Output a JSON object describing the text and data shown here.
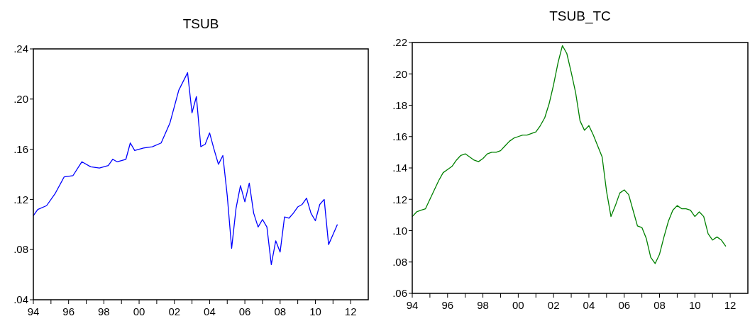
{
  "chart_data": [
    {
      "type": "line",
      "title": "TSUB",
      "x": [
        1994,
        1994.25,
        1994.75,
        1995.25,
        1995.75,
        1996.25,
        1996.75,
        1997.25,
        1997.75,
        1998.25,
        1998.5,
        1998.75,
        1999.25,
        1999.5,
        1999.75,
        2000.25,
        2000.75,
        2001.25,
        2001.75,
        2002.25,
        2002.75,
        2003,
        2003.25,
        2003.5,
        2003.75,
        2004,
        2004.25,
        2004.5,
        2004.75,
        2005,
        2005.25,
        2005.5,
        2005.75,
        2006,
        2006.25,
        2006.5,
        2006.75,
        2007,
        2007.25,
        2007.5,
        2007.75,
        2008,
        2008.25,
        2008.5,
        2008.75,
        2009,
        2009.25,
        2009.5,
        2009.75,
        2010,
        2010.25,
        2010.5,
        2010.75,
        2011,
        2011.25
      ],
      "series": [
        {
          "color": "#0000ff",
          "values": [
            0.107,
            0.112,
            0.115,
            0.125,
            0.138,
            0.139,
            0.15,
            0.146,
            0.145,
            0.147,
            0.152,
            0.15,
            0.152,
            0.165,
            0.159,
            0.161,
            0.162,
            0.165,
            0.181,
            0.207,
            0.221,
            0.189,
            0.202,
            0.162,
            0.164,
            0.173,
            0.16,
            0.148,
            0.155,
            0.123,
            0.081,
            0.113,
            0.131,
            0.118,
            0.133,
            0.109,
            0.098,
            0.104,
            0.098,
            0.068,
            0.087,
            0.078,
            0.106,
            0.105,
            0.109,
            0.114,
            0.116,
            0.121,
            0.109,
            0.103,
            0.116,
            0.12,
            0.084,
            0.092,
            0.1
          ]
        }
      ],
      "xlim": [
        1994,
        2013
      ],
      "xticks": [
        {
          "value": 1994,
          "label": "94"
        },
        {
          "value": 1995,
          "label": null
        },
        {
          "value": 1996,
          "label": "96"
        },
        {
          "value": 1997,
          "label": null
        },
        {
          "value": 1998,
          "label": "98"
        },
        {
          "value": 1999,
          "label": null
        },
        {
          "value": 2000,
          "label": "00"
        },
        {
          "value": 2001,
          "label": null
        },
        {
          "value": 2002,
          "label": "02"
        },
        {
          "value": 2003,
          "label": null
        },
        {
          "value": 2004,
          "label": "04"
        },
        {
          "value": 2005,
          "label": null
        },
        {
          "value": 2006,
          "label": "06"
        },
        {
          "value": 2007,
          "label": null
        },
        {
          "value": 2008,
          "label": "08"
        },
        {
          "value": 2009,
          "label": null
        },
        {
          "value": 2010,
          "label": "10"
        },
        {
          "value": 2011,
          "label": null
        },
        {
          "value": 2012,
          "label": "12"
        }
      ],
      "ylim": [
        0.04,
        0.24
      ],
      "yticks": [
        {
          "value": 0.04,
          "label": ".04"
        },
        {
          "value": 0.08,
          "label": ".08"
        },
        {
          "value": 0.12,
          "label": ".12"
        },
        {
          "value": 0.16,
          "label": ".16"
        },
        {
          "value": 0.2,
          "label": ".20"
        },
        {
          "value": 0.24,
          "label": ".24"
        }
      ]
    },
    {
      "type": "line",
      "title": "TSUB_TC",
      "x": [
        1994,
        1994.25,
        1994.5,
        1994.75,
        1995,
        1995.25,
        1995.5,
        1995.75,
        1996,
        1996.25,
        1996.5,
        1996.75,
        1997,
        1997.25,
        1997.5,
        1997.75,
        1998,
        1998.25,
        1998.5,
        1998.75,
        1999,
        1999.25,
        1999.5,
        1999.75,
        2000,
        2000.25,
        2000.5,
        2000.75,
        2001,
        2001.25,
        2001.5,
        2001.75,
        2002,
        2002.25,
        2002.5,
        2002.75,
        2003,
        2003.25,
        2003.5,
        2003.75,
        2004,
        2004.25,
        2004.5,
        2004.75,
        2005,
        2005.25,
        2005.5,
        2005.75,
        2006,
        2006.25,
        2006.5,
        2006.75,
        2007,
        2007.25,
        2007.5,
        2007.75,
        2008,
        2008.25,
        2008.5,
        2008.75,
        2009,
        2009.25,
        2009.5,
        2009.75,
        2010,
        2010.25,
        2010.5,
        2010.75,
        2011,
        2011.25,
        2011.5,
        2011.75
      ],
      "series": [
        {
          "color": "#008000",
          "values": [
            0.109,
            0.112,
            0.113,
            0.114,
            0.12,
            0.126,
            0.132,
            0.137,
            0.139,
            0.141,
            0.145,
            0.148,
            0.149,
            0.147,
            0.145,
            0.144,
            0.146,
            0.149,
            0.15,
            0.15,
            0.151,
            0.154,
            0.157,
            0.159,
            0.16,
            0.161,
            0.161,
            0.162,
            0.163,
            0.167,
            0.172,
            0.181,
            0.193,
            0.207,
            0.218,
            0.213,
            0.201,
            0.188,
            0.17,
            0.164,
            0.167,
            0.161,
            0.154,
            0.147,
            0.125,
            0.109,
            0.116,
            0.124,
            0.126,
            0.123,
            0.113,
            0.103,
            0.102,
            0.095,
            0.083,
            0.079,
            0.085,
            0.096,
            0.106,
            0.113,
            0.116,
            0.114,
            0.114,
            0.113,
            0.109,
            0.112,
            0.109,
            0.098,
            0.094,
            0.096,
            0.094,
            0.09
          ]
        }
      ],
      "xlim": [
        1994,
        2013
      ],
      "xticks": [
        {
          "value": 1994,
          "label": "94"
        },
        {
          "value": 1995,
          "label": null
        },
        {
          "value": 1996,
          "label": "96"
        },
        {
          "value": 1997,
          "label": null
        },
        {
          "value": 1998,
          "label": "98"
        },
        {
          "value": 1999,
          "label": null
        },
        {
          "value": 2000,
          "label": "00"
        },
        {
          "value": 2001,
          "label": null
        },
        {
          "value": 2002,
          "label": "02"
        },
        {
          "value": 2003,
          "label": null
        },
        {
          "value": 2004,
          "label": "04"
        },
        {
          "value": 2005,
          "label": null
        },
        {
          "value": 2006,
          "label": "06"
        },
        {
          "value": 2007,
          "label": null
        },
        {
          "value": 2008,
          "label": "08"
        },
        {
          "value": 2009,
          "label": null
        },
        {
          "value": 2010,
          "label": "10"
        },
        {
          "value": 2011,
          "label": null
        },
        {
          "value": 2012,
          "label": "12"
        }
      ],
      "ylim": [
        0.06,
        0.22
      ],
      "yticks": [
        {
          "value": 0.06,
          "label": ".06"
        },
        {
          "value": 0.08,
          "label": ".08"
        },
        {
          "value": 0.1,
          "label": ".10"
        },
        {
          "value": 0.12,
          "label": ".12"
        },
        {
          "value": 0.14,
          "label": ".14"
        },
        {
          "value": 0.16,
          "label": ".16"
        },
        {
          "value": 0.18,
          "label": ".18"
        },
        {
          "value": 0.2,
          "label": ".20"
        },
        {
          "value": 0.22,
          "label": ".22"
        }
      ]
    }
  ]
}
